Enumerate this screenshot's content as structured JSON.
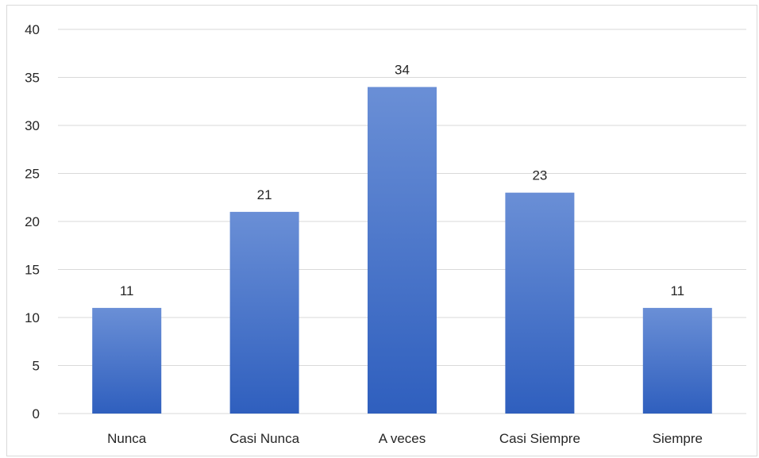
{
  "chart_data": {
    "type": "bar",
    "title": "",
    "xlabel": "",
    "ylabel": "",
    "categories": [
      "Nunca",
      "Casi Nunca",
      "A veces",
      "Casi Siempre",
      "Siempre"
    ],
    "values": [
      11,
      21,
      34,
      23,
      11
    ],
    "data_labels": [
      "11",
      "21",
      "34",
      "23",
      "11"
    ],
    "ylim": [
      0,
      40
    ],
    "yticks": [
      0,
      5,
      10,
      15,
      20,
      25,
      30,
      35,
      40
    ],
    "ytick_labels": [
      "0",
      "5",
      "10",
      "15",
      "20",
      "25",
      "30",
      "35",
      "40"
    ],
    "grid": true,
    "legend": "none",
    "colors": {
      "bar_top": "#6a8fd6",
      "bar_bottom": "#2f5fbe",
      "grid": "#d9d9d9",
      "text": "#262626"
    }
  }
}
